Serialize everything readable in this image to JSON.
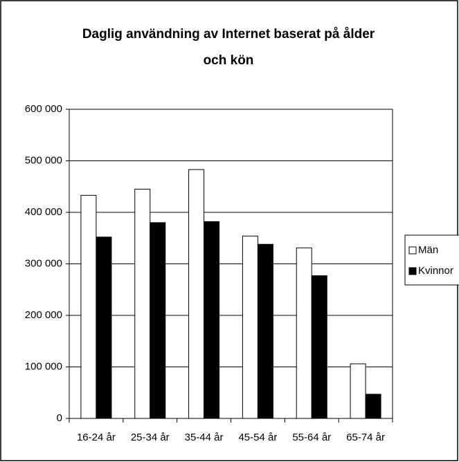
{
  "chart_data": {
    "type": "bar",
    "title": "Daglig användning av Internet baserat på ålder",
    "title_line2": "och kön",
    "categories": [
      "16-24 år",
      "25-34 år",
      "35-44 år",
      "45-54 år",
      "55-64 år",
      "65-74 år"
    ],
    "series": [
      {
        "name": "Män",
        "color": "#ffffff",
        "values": [
          433000,
          445000,
          483000,
          354000,
          331000,
          106000
        ]
      },
      {
        "name": "Kvinnor",
        "color": "#000000",
        "values": [
          352000,
          380000,
          382000,
          338000,
          277000,
          47000
        ]
      }
    ],
    "ylim": [
      0,
      600000
    ],
    "yticks": [
      0,
      {
        "value": 100000,
        "label": "100 000"
      },
      {
        "value": 200000,
        "label": "200 000"
      },
      {
        "value": 300000,
        "label": "300 000"
      },
      {
        "value": 400000,
        "label": "400 000"
      },
      {
        "value": 500000,
        "label": "500 000"
      },
      {
        "value": 600000,
        "label": "600 000"
      }
    ],
    "grid": true,
    "legend": "right"
  }
}
